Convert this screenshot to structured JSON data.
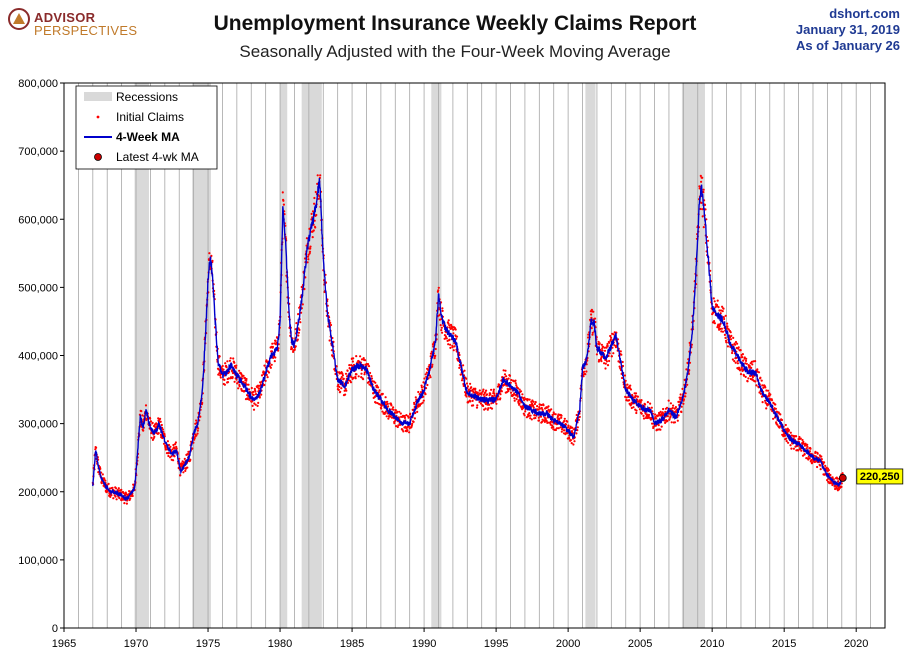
{
  "header": {
    "logo_line1": "ADVISOR",
    "logo_line2": "PERSPECTIVES",
    "title": "Unemployment Insurance Weekly Claims Report",
    "subtitle": "Seasonally Adjusted with the Four-Week Moving Average",
    "source": "dshort.com",
    "date": "January 31, 2019",
    "as_of": "As of January 26"
  },
  "colors": {
    "recession": "#d9d9d9",
    "initial_claims": "#ff0000",
    "ma_line": "#0000cc",
    "latest_fill": "#cc0000",
    "callout_bg": "#ffff00"
  },
  "chart_data": {
    "type": "line",
    "title": "Unemployment Insurance Weekly Claims Report",
    "subtitle": "Seasonally Adjusted with the Four-Week Moving Average",
    "xlim": [
      1965,
      2022
    ],
    "ylim": [
      0,
      800000
    ],
    "x_ticks": [
      1965,
      1970,
      1975,
      1980,
      1985,
      1990,
      1995,
      2000,
      2005,
      2010,
      2015,
      2020
    ],
    "y_ticks": [
      0,
      100000,
      200000,
      300000,
      400000,
      500000,
      600000,
      700000,
      800000
    ],
    "y_tick_labels": [
      "0",
      "100,000",
      "200,000",
      "300,000",
      "400,000",
      "500,000",
      "600,000",
      "700,000",
      "800,000"
    ],
    "grid": "vertical",
    "legend": {
      "position": "top-left",
      "entries": [
        "Recessions",
        "Initial Claims",
        "4-Week MA",
        "Latest 4-wk MA"
      ]
    },
    "recessions": [
      [
        1969.9,
        1970.9
      ],
      [
        1973.9,
        1975.2
      ],
      [
        1980.0,
        1980.5
      ],
      [
        1981.5,
        1982.9
      ],
      [
        1990.5,
        1991.2
      ],
      [
        2001.2,
        2001.9
      ],
      [
        2007.9,
        2009.5
      ]
    ],
    "series": [
      {
        "name": "4-Week MA",
        "x": [
          1967.0,
          1967.2,
          1967.4,
          1967.6,
          1967.8,
          1968.0,
          1968.3,
          1968.6,
          1969.0,
          1969.3,
          1969.6,
          1969.9,
          1970.1,
          1970.3,
          1970.5,
          1970.7,
          1970.9,
          1971.1,
          1971.3,
          1971.6,
          1971.9,
          1972.2,
          1972.5,
          1972.8,
          1973.1,
          1973.4,
          1973.7,
          1974.0,
          1974.3,
          1974.6,
          1974.8,
          1975.0,
          1975.15,
          1975.3,
          1975.5,
          1975.7,
          1976.0,
          1976.3,
          1976.6,
          1977.0,
          1977.4,
          1977.8,
          1978.2,
          1978.6,
          1979.0,
          1979.4,
          1979.8,
          1980.0,
          1980.2,
          1980.4,
          1980.6,
          1980.8,
          1981.0,
          1981.3,
          1981.6,
          1981.9,
          1982.2,
          1982.5,
          1982.75,
          1983.0,
          1983.3,
          1983.6,
          1984.0,
          1984.5,
          1985.0,
          1985.5,
          1986.0,
          1986.5,
          1987.0,
          1987.5,
          1988.0,
          1988.5,
          1989.0,
          1989.5,
          1990.0,
          1990.4,
          1990.8,
          1991.0,
          1991.2,
          1991.5,
          1991.8,
          1992.2,
          1992.6,
          1993.0,
          1993.5,
          1994.0,
          1994.5,
          1995.0,
          1995.5,
          1996.0,
          1996.5,
          1997.0,
          1997.5,
          1998.0,
          1998.5,
          1999.0,
          1999.5,
          2000.0,
          2000.4,
          2000.8,
          2001.0,
          2001.3,
          2001.6,
          2001.8,
          2002.0,
          2002.3,
          2002.6,
          2003.0,
          2003.3,
          2003.6,
          2004.0,
          2004.5,
          2005.0,
          2005.4,
          2005.7,
          2006.0,
          2006.5,
          2007.0,
          2007.5,
          2008.0,
          2008.3,
          2008.6,
          2008.9,
          2009.1,
          2009.25,
          2009.5,
          2009.8,
          2010.0,
          2010.4,
          2010.8,
          2011.2,
          2011.6,
          2012.0,
          2012.5,
          2013.0,
          2013.5,
          2014.0,
          2014.5,
          2015.0,
          2015.5,
          2016.0,
          2016.5,
          2017.0,
          2017.5,
          2018.0,
          2018.4,
          2018.8,
          2019.07
        ],
        "values": [
          210000,
          262000,
          235000,
          220000,
          212000,
          205000,
          200000,
          198000,
          195000,
          190000,
          195000,
          205000,
          255000,
          310000,
          295000,
          320000,
          300000,
          290000,
          285000,
          300000,
          280000,
          265000,
          255000,
          262000,
          230000,
          240000,
          250000,
          285000,
          300000,
          345000,
          420000,
          510000,
          545000,
          520000,
          450000,
          390000,
          370000,
          375000,
          385000,
          370000,
          360000,
          345000,
          335000,
          345000,
          375000,
          400000,
          410000,
          450000,
          620000,
          560000,
          470000,
          420000,
          415000,
          450000,
          500000,
          560000,
          590000,
          620000,
          660000,
          540000,
          460000,
          420000,
          365000,
          355000,
          380000,
          385000,
          380000,
          350000,
          335000,
          320000,
          310000,
          300000,
          300000,
          330000,
          350000,
          380000,
          420000,
          490000,
          455000,
          440000,
          430000,
          420000,
          380000,
          345000,
          340000,
          335000,
          335000,
          335000,
          365000,
          355000,
          345000,
          325000,
          320000,
          315000,
          315000,
          305000,
          300000,
          290000,
          280000,
          320000,
          380000,
          395000,
          450000,
          450000,
          410000,
          405000,
          395000,
          415000,
          430000,
          395000,
          350000,
          335000,
          325000,
          320000,
          320000,
          300000,
          305000,
          320000,
          310000,
          340000,
          375000,
          430000,
          530000,
          620000,
          650000,
          600000,
          525000,
          470000,
          460000,
          450000,
          420000,
          405000,
          390000,
          375000,
          375000,
          345000,
          330000,
          310000,
          290000,
          275000,
          270000,
          260000,
          250000,
          245000,
          225000,
          215000,
          210000,
          220250
        ]
      },
      {
        "name": "Latest 4-wk MA",
        "x": [
          2019.07
        ],
        "values": [
          220250
        ]
      }
    ],
    "annotations": [
      {
        "text": "220,250",
        "x": 2019.07,
        "y": 220250
      }
    ]
  }
}
